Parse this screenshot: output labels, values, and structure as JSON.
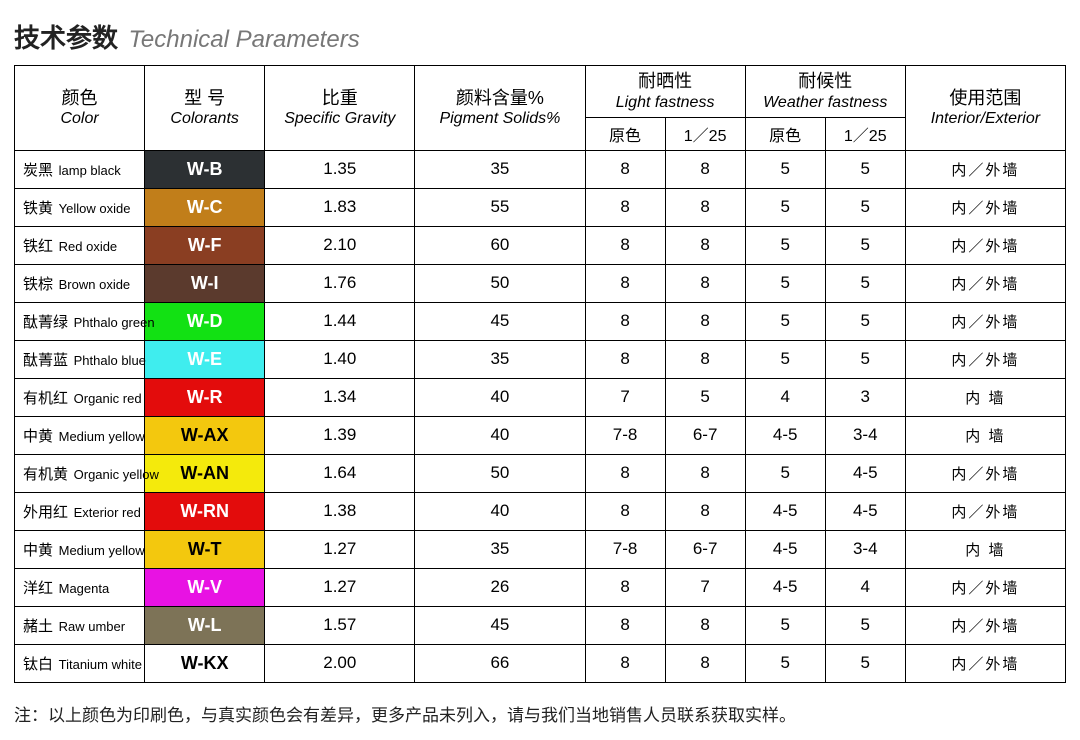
{
  "title": {
    "cn": "技术参数",
    "en": "Technical Parameters"
  },
  "headers": {
    "color": {
      "cn": "颜色",
      "en": "Color"
    },
    "model": {
      "cn": "型 号",
      "en": "Colorants"
    },
    "gravity": {
      "cn": "比重",
      "en": "Specific Gravity"
    },
    "pigment": {
      "cn": "颜料含量%",
      "en": "Pigment Solids%"
    },
    "light": {
      "cn": "耐晒性",
      "en": "Light fastness"
    },
    "weather": {
      "cn": "耐候性",
      "en": "Weather fastness"
    },
    "scope": {
      "cn": "使用范围",
      "en": "Interior/Exterior"
    },
    "sub_primary": "原色",
    "sub_ratio": "1／25"
  },
  "rows": [
    {
      "name_cn": "炭黑",
      "name_en": "lamp black",
      "model": "W-B",
      "bg": "#2c3033",
      "fg": "#ffffff",
      "gravity": "1.35",
      "pigment": "35",
      "lf1": "8",
      "lf2": "8",
      "wf1": "5",
      "wf2": "5",
      "scope": "内／外墙"
    },
    {
      "name_cn": "铁黄",
      "name_en": "Yellow oxide",
      "model": "W-C",
      "bg": "#c17e1a",
      "fg": "#ffffff",
      "gravity": "1.83",
      "pigment": "55",
      "lf1": "8",
      "lf2": "8",
      "wf1": "5",
      "wf2": "5",
      "scope": "内／外墙"
    },
    {
      "name_cn": "铁红",
      "name_en": "Red oxide",
      "model": "W-F",
      "bg": "#8a3e22",
      "fg": "#ffffff",
      "gravity": "2.10",
      "pigment": "60",
      "lf1": "8",
      "lf2": "8",
      "wf1": "5",
      "wf2": "5",
      "scope": "内／外墙"
    },
    {
      "name_cn": "铁棕",
      "name_en": "Brown oxide",
      "model": "W-I",
      "bg": "#5b3a2d",
      "fg": "#ffffff",
      "gravity": "1.76",
      "pigment": "50",
      "lf1": "8",
      "lf2": "8",
      "wf1": "5",
      "wf2": "5",
      "scope": "内／外墙"
    },
    {
      "name_cn": "酞菁绿",
      "name_en": "Phthalo green",
      "model": "W-D",
      "bg": "#12e113",
      "fg": "#ffffff",
      "gravity": "1.44",
      "pigment": "45",
      "lf1": "8",
      "lf2": "8",
      "wf1": "5",
      "wf2": "5",
      "scope": "内／外墙"
    },
    {
      "name_cn": "酞菁蓝",
      "name_en": "Phthalo blue",
      "model": "W-E",
      "bg": "#3fedee",
      "fg": "#ffffff",
      "gravity": "1.40",
      "pigment": "35",
      "lf1": "8",
      "lf2": "8",
      "wf1": "5",
      "wf2": "5",
      "scope": "内／外墙"
    },
    {
      "name_cn": "有机红",
      "name_en": "Organic red",
      "model": "W-R",
      "bg": "#e30c0c",
      "fg": "#ffffff",
      "gravity": "1.34",
      "pigment": "40",
      "lf1": "7",
      "lf2": "5",
      "wf1": "4",
      "wf2": "3",
      "scope": "内 墙"
    },
    {
      "name_cn": "中黄",
      "name_en": "Medium yellow",
      "model": "W-AX",
      "bg": "#f3c80e",
      "fg": "#000000",
      "gravity": "1.39",
      "pigment": "40",
      "lf1": "7-8",
      "lf2": "6-7",
      "wf1": "4-5",
      "wf2": "3-4",
      "scope": "内 墙"
    },
    {
      "name_cn": "有机黄",
      "name_en": "Organic yellow",
      "model": "W-AN",
      "bg": "#f4ea0c",
      "fg": "#000000",
      "gravity": "1.64",
      "pigment": "50",
      "lf1": "8",
      "lf2": "8",
      "wf1": "5",
      "wf2": "4-5",
      "scope": "内／外墙"
    },
    {
      "name_cn": "外用红",
      "name_en": "Exterior red",
      "model": "W-RN",
      "bg": "#e30c0c",
      "fg": "#ffffff",
      "gravity": "1.38",
      "pigment": "40",
      "lf1": "8",
      "lf2": "8",
      "wf1": "4-5",
      "wf2": "4-5",
      "scope": "内／外墙"
    },
    {
      "name_cn": "中黄",
      "name_en": "Medium yellow",
      "model": "W-T",
      "bg": "#f3c80e",
      "fg": "#000000",
      "gravity": "1.27",
      "pigment": "35",
      "lf1": "7-8",
      "lf2": "6-7",
      "wf1": "4-5",
      "wf2": "3-4",
      "scope": "内 墙"
    },
    {
      "name_cn": "洋红",
      "name_en": "Magenta",
      "model": "W-V",
      "bg": "#e812e3",
      "fg": "#ffffff",
      "gravity": "1.27",
      "pigment": "26",
      "lf1": "8",
      "lf2": "7",
      "wf1": "4-5",
      "wf2": "4",
      "scope": "内／外墙"
    },
    {
      "name_cn": "赭土",
      "name_en": "Raw umber",
      "model": "W-L",
      "bg": "#7d7357",
      "fg": "#ffffff",
      "gravity": "1.57",
      "pigment": "45",
      "lf1": "8",
      "lf2": "8",
      "wf1": "5",
      "wf2": "5",
      "scope": "内／外墙"
    },
    {
      "name_cn": "钛白",
      "name_en": "Titanium white",
      "model": "W-KX",
      "bg": "#ffffff",
      "fg": "#000000",
      "gravity": "2.00",
      "pigment": "66",
      "lf1": "8",
      "lf2": "8",
      "wf1": "5",
      "wf2": "5",
      "scope": "内／外墙"
    }
  ],
  "footnote": "注：以上颜色为印刷色，与真实颜色会有差异，更多产品未列入，请与我们当地销售人员联系获取实样。"
}
